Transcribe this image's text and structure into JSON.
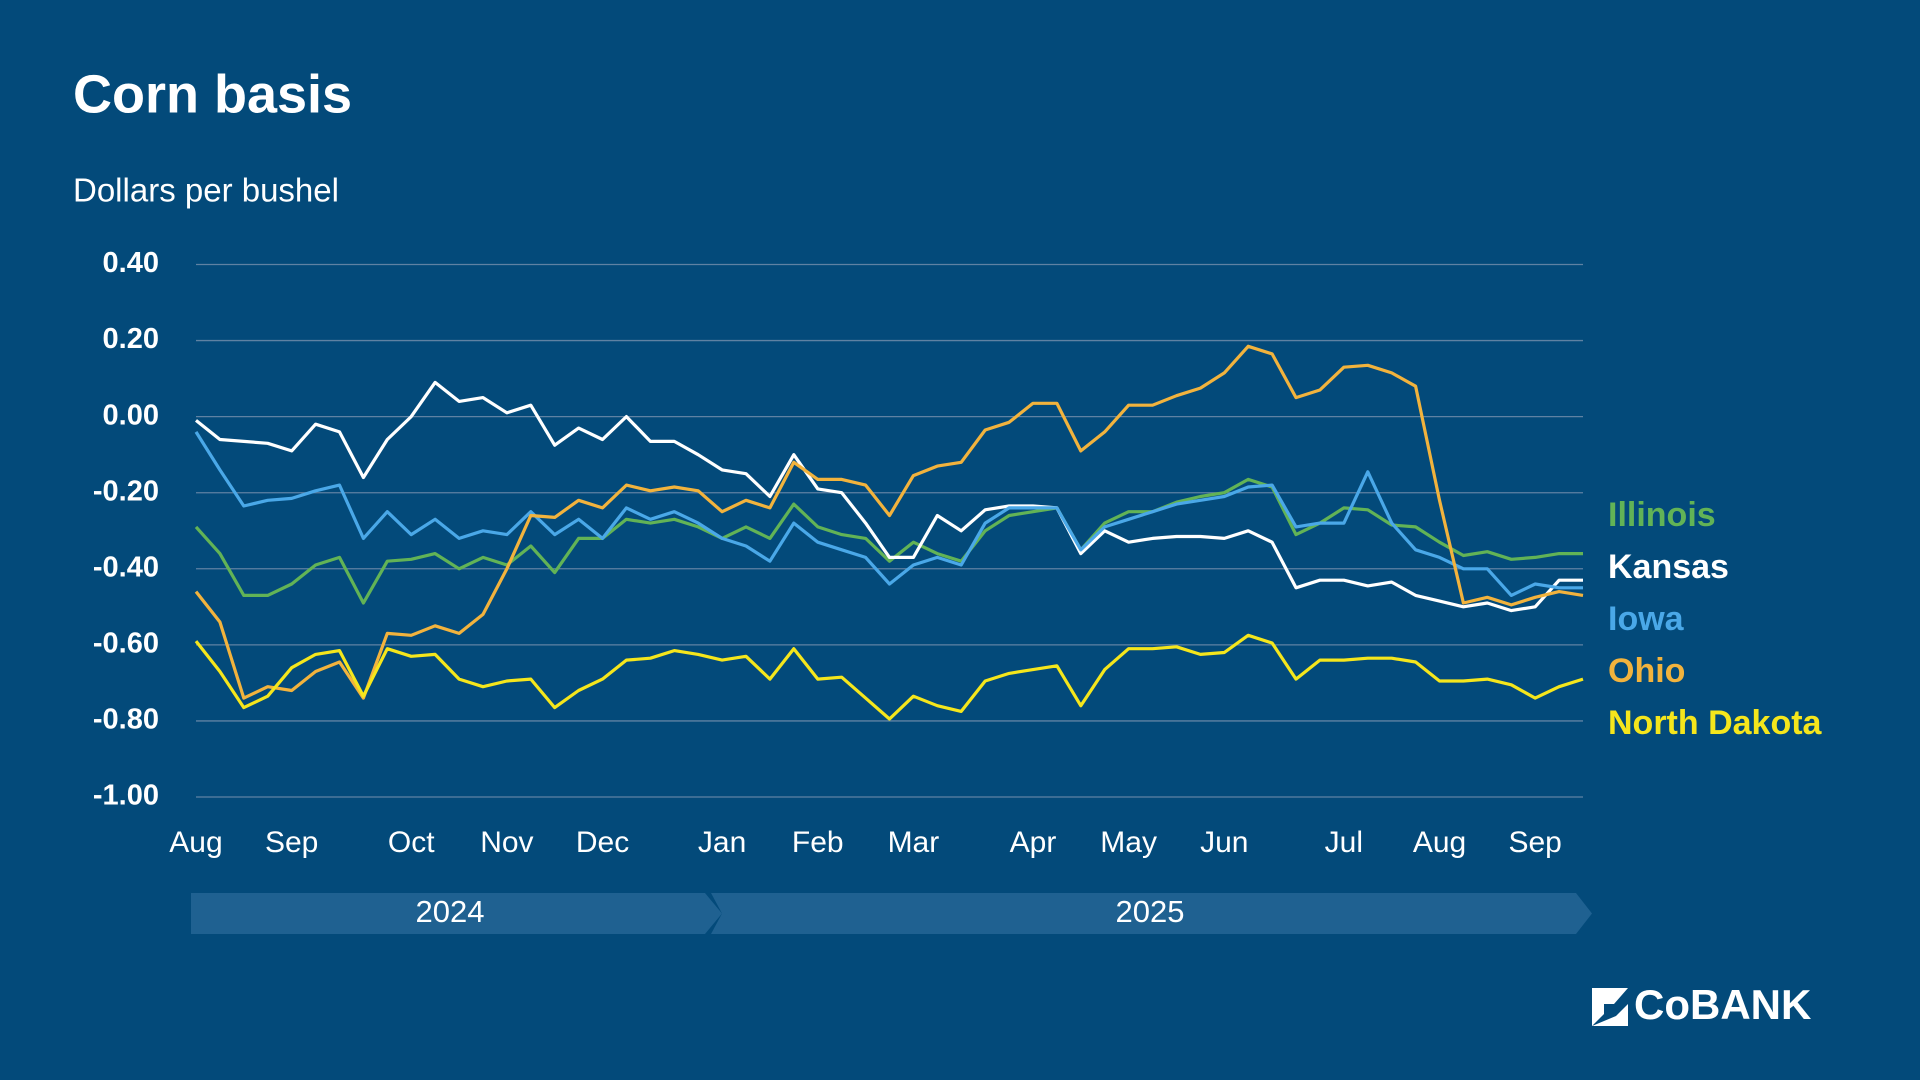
{
  "chart_data": {
    "type": "line",
    "title": "Corn basis",
    "subtitle": "Dollars per bushel",
    "categories": [
      "Aug",
      null,
      null,
      null,
      "Sep",
      null,
      null,
      null,
      null,
      "Oct",
      null,
      null,
      null,
      "Nov",
      null,
      null,
      null,
      "Dec",
      null,
      null,
      null,
      null,
      "Jan",
      null,
      null,
      null,
      "Feb",
      null,
      null,
      null,
      "Mar",
      null,
      null,
      null,
      null,
      "Apr",
      null,
      null,
      null,
      "May",
      null,
      null,
      null,
      "Jun",
      null,
      null,
      null,
      null,
      "Jul",
      null,
      null,
      null,
      "Aug",
      null,
      null,
      null,
      "Sep",
      null,
      null
    ],
    "series": [
      {
        "name": "Illinois",
        "color": "#62b356",
        "values": [
          -0.29,
          -0.36,
          -0.47,
          -0.47,
          -0.44,
          -0.39,
          -0.37,
          -0.49,
          -0.38,
          -0.375,
          -0.36,
          -0.4,
          -0.37,
          -0.39,
          -0.34,
          -0.41,
          -0.32,
          -0.32,
          -0.27,
          -0.28,
          -0.27,
          -0.29,
          -0.32,
          -0.29,
          -0.32,
          -0.23,
          -0.29,
          -0.31,
          -0.32,
          -0.38,
          -0.33,
          -0.36,
          -0.38,
          -0.3,
          -0.26,
          -0.25,
          -0.24,
          -0.35,
          -0.28,
          -0.25,
          -0.25,
          -0.225,
          -0.21,
          -0.2,
          -0.165,
          -0.185,
          -0.31,
          -0.28,
          -0.24,
          -0.245,
          -0.285,
          -0.29,
          -0.33,
          -0.365,
          -0.355,
          -0.375,
          -0.37,
          -0.36,
          -0.36
        ]
      },
      {
        "name": "Kansas",
        "color": "#ffffff",
        "values": [
          -0.01,
          -0.06,
          -0.065,
          -0.07,
          -0.09,
          -0.02,
          -0.04,
          -0.16,
          -0.06,
          0.0,
          0.09,
          0.04,
          0.05,
          0.01,
          0.03,
          -0.075,
          -0.03,
          -0.06,
          0.0,
          -0.065,
          -0.065,
          -0.1,
          -0.14,
          -0.15,
          -0.21,
          -0.1,
          -0.19,
          -0.2,
          -0.28,
          -0.37,
          -0.37,
          -0.26,
          -0.3,
          -0.245,
          -0.235,
          -0.235,
          -0.24,
          -0.36,
          -0.3,
          -0.33,
          -0.32,
          -0.315,
          -0.315,
          -0.32,
          -0.3,
          -0.33,
          -0.45,
          -0.43,
          -0.43,
          -0.445,
          -0.435,
          -0.47,
          -0.485,
          -0.5,
          -0.49,
          -0.51,
          -0.5,
          -0.43,
          -0.43
        ]
      },
      {
        "name": "Iowa",
        "color": "#4aa8e8",
        "values": [
          -0.04,
          -0.14,
          -0.235,
          -0.22,
          -0.215,
          -0.195,
          -0.18,
          -0.32,
          -0.25,
          -0.31,
          -0.27,
          -0.32,
          -0.3,
          -0.31,
          -0.25,
          -0.31,
          -0.27,
          -0.32,
          -0.24,
          -0.27,
          -0.25,
          -0.28,
          -0.32,
          -0.34,
          -0.38,
          -0.28,
          -0.33,
          -0.35,
          -0.37,
          -0.44,
          -0.39,
          -0.37,
          -0.39,
          -0.28,
          -0.24,
          -0.24,
          -0.24,
          -0.35,
          -0.29,
          -0.27,
          -0.25,
          -0.23,
          -0.22,
          -0.21,
          -0.185,
          -0.18,
          -0.29,
          -0.28,
          -0.28,
          -0.145,
          -0.28,
          -0.35,
          -0.37,
          -0.4,
          -0.4,
          -0.47,
          -0.44,
          -0.45,
          -0.45
        ]
      },
      {
        "name": "Ohio",
        "color": "#f2b33d",
        "values": [
          -0.46,
          -0.54,
          -0.74,
          -0.71,
          -0.72,
          -0.67,
          -0.645,
          -0.74,
          -0.57,
          -0.575,
          -0.55,
          -0.57,
          -0.52,
          -0.4,
          -0.26,
          -0.265,
          -0.22,
          -0.24,
          -0.18,
          -0.195,
          -0.185,
          -0.195,
          -0.25,
          -0.22,
          -0.24,
          -0.12,
          -0.165,
          -0.165,
          -0.18,
          -0.26,
          -0.155,
          -0.13,
          -0.12,
          -0.035,
          -0.015,
          0.035,
          0.035,
          -0.09,
          -0.04,
          0.03,
          0.03,
          0.055,
          0.075,
          0.115,
          0.185,
          0.165,
          0.05,
          0.07,
          0.13,
          0.135,
          0.115,
          0.08,
          -0.22,
          -0.49,
          -0.475,
          -0.495,
          -0.475,
          -0.46,
          -0.47
        ]
      },
      {
        "name": "North Dakota",
        "color": "#f5e61c",
        "values": [
          -0.59,
          -0.67,
          -0.765,
          -0.735,
          -0.66,
          -0.625,
          -0.615,
          -0.735,
          -0.61,
          -0.63,
          -0.625,
          -0.69,
          -0.71,
          -0.695,
          -0.69,
          -0.765,
          -0.72,
          -0.69,
          -0.64,
          -0.635,
          -0.615,
          -0.625,
          -0.64,
          -0.63,
          -0.69,
          -0.61,
          -0.69,
          -0.685,
          -0.74,
          -0.795,
          -0.735,
          -0.76,
          -0.775,
          -0.695,
          -0.675,
          -0.665,
          -0.655,
          -0.76,
          -0.665,
          -0.61,
          -0.61,
          -0.605,
          -0.625,
          -0.62,
          -0.575,
          -0.595,
          -0.69,
          -0.64,
          -0.64,
          -0.635,
          -0.635,
          -0.645,
          -0.695,
          -0.695,
          -0.69,
          -0.705,
          -0.74,
          -0.71,
          -0.69
        ]
      }
    ],
    "ylim": [
      -1.0,
      0.4
    ],
    "yticks": [
      {
        "value": -1.0,
        "label": "-1.00"
      },
      {
        "value": -0.8,
        "label": "-0.80"
      },
      {
        "value": -0.6,
        "label": "-0.60"
      },
      {
        "value": -0.4,
        "label": "-0.40"
      },
      {
        "value": -0.2,
        "label": "-0.20"
      },
      {
        "value": 0,
        "label": "0.00"
      },
      {
        "value": 0.2,
        "label": "0.20"
      },
      {
        "value": 0.4,
        "label": "0.40"
      }
    ],
    "grid": true,
    "legend": "right",
    "year_labels": [
      "2024",
      "2025"
    ]
  },
  "logo": "CoBANK"
}
